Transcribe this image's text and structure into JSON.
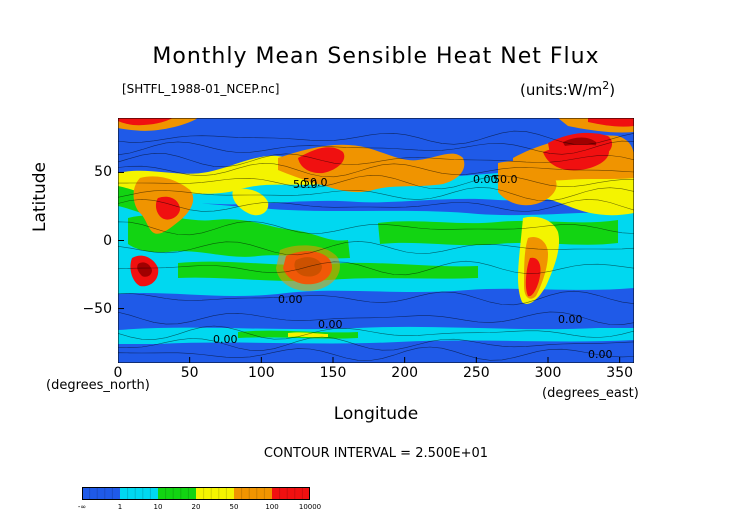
{
  "chart_data": {
    "type": "heatmap",
    "title": "Monthly Mean Sensible Heat Net Flux",
    "file": "[SHTFL_1988-01_NCEP.nc]",
    "units": "(units:W/m^2)",
    "xlabel": "Longitude",
    "ylabel": "Latitude",
    "x_unit_left": "(degrees_north)",
    "x_unit_right": "(degrees_east)",
    "xlim": [
      0,
      360
    ],
    "ylim": [
      -90,
      90
    ],
    "x_ticks": [
      "0",
      "50",
      "100",
      "150",
      "200",
      "250",
      "300",
      "350"
    ],
    "y_ticks": [
      "50",
      "0",
      "−50"
    ],
    "contour_interval": "CONTOUR INTERVAL = 2.500E+01",
    "contour_labels": [
      "50.0",
      "50.0",
      "0.00",
      "50.0",
      "0.00",
      "0.00",
      "0.00",
      "0.00",
      "0.00"
    ],
    "colorbar": {
      "labels": [
        "-∞",
        "1",
        "10",
        "20",
        "50",
        "100",
        "10000"
      ],
      "colors": [
        "#1f5ae8",
        "#00d8f0",
        "#12d412",
        "#f4f400",
        "#f09400",
        "#f01010"
      ]
    },
    "palette": {
      "deep": "#1f5ae8",
      "cyan": "#00d8f0",
      "green": "#12d412",
      "yellow": "#f4f400",
      "orange": "#f09400",
      "red": "#f01010",
      "darkred": "#a00000"
    }
  }
}
